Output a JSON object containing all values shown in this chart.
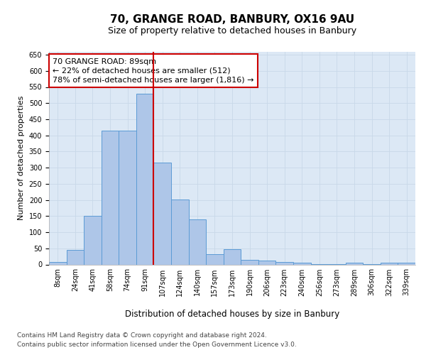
{
  "title": "70, GRANGE ROAD, BANBURY, OX16 9AU",
  "subtitle": "Size of property relative to detached houses in Banbury",
  "xlabel": "Distribution of detached houses by size in Banbury",
  "ylabel": "Number of detached properties",
  "categories": [
    "8sqm",
    "24sqm",
    "41sqm",
    "58sqm",
    "74sqm",
    "91sqm",
    "107sqm",
    "124sqm",
    "140sqm",
    "157sqm",
    "173sqm",
    "190sqm",
    "206sqm",
    "223sqm",
    "240sqm",
    "256sqm",
    "273sqm",
    "289sqm",
    "306sqm",
    "322sqm",
    "339sqm"
  ],
  "values": [
    8,
    45,
    150,
    415,
    415,
    530,
    315,
    202,
    140,
    33,
    48,
    14,
    12,
    8,
    5,
    2,
    2,
    5,
    2,
    6,
    5
  ],
  "bar_color": "#aec6e8",
  "bar_edge_color": "#5b9bd5",
  "vline_x": 5.5,
  "vline_color": "#cc0000",
  "annotation_text": "70 GRANGE ROAD: 89sqm\n← 22% of detached houses are smaller (512)\n78% of semi-detached houses are larger (1,816) →",
  "annotation_box_color": "#ffffff",
  "annotation_box_edge_color": "#cc0000",
  "ylim": [
    0,
    660
  ],
  "yticks": [
    0,
    50,
    100,
    150,
    200,
    250,
    300,
    350,
    400,
    450,
    500,
    550,
    600,
    650
  ],
  "grid_color": "#c8d8e8",
  "background_color": "#dce8f5",
  "footer_line1": "Contains HM Land Registry data © Crown copyright and database right 2024.",
  "footer_line2": "Contains public sector information licensed under the Open Government Licence v3.0.",
  "title_fontsize": 11,
  "subtitle_fontsize": 9,
  "xlabel_fontsize": 8.5,
  "ylabel_fontsize": 8,
  "tick_fontsize": 7,
  "annotation_fontsize": 8,
  "footer_fontsize": 6.5
}
